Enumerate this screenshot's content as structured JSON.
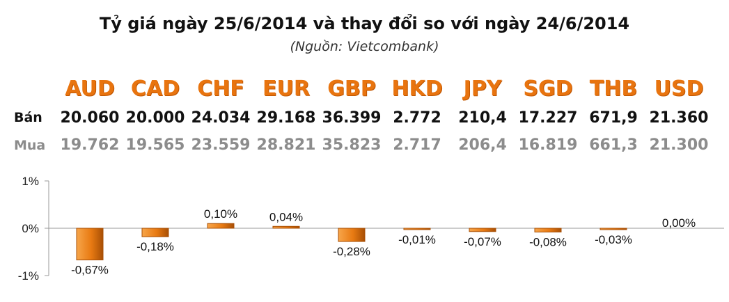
{
  "title": "Tỷ giá ngày 25/6/2014 và thay đổi so với ngày 24/6/2014",
  "source": "(Nguồn: Vietcombank)",
  "rows": {
    "sell_label": "Bán",
    "buy_label": "Mua"
  },
  "colors": {
    "bar": "#e87a12",
    "bar_dark": "#a84f05",
    "bar_light": "#f7a54a",
    "currency": "#e8740f"
  },
  "chart_data": {
    "type": "bar",
    "categories": [
      "AUD",
      "CAD",
      "CHF",
      "EUR",
      "GBP",
      "HKD",
      "JPY",
      "SGD",
      "THB",
      "USD"
    ],
    "sell": [
      "20.060",
      "20.000",
      "24.034",
      "29.168",
      "36.399",
      "2.772",
      "210,4",
      "17.227",
      "671,9",
      "21.360"
    ],
    "buy": [
      "19.762",
      "19.565",
      "23.559",
      "28.821",
      "35.823",
      "2.717",
      "206,4",
      "16.819",
      "661,3",
      "21.300"
    ],
    "values": [
      -0.67,
      -0.18,
      0.1,
      0.04,
      -0.28,
      -0.01,
      -0.07,
      -0.08,
      -0.03,
      0.0
    ],
    "value_labels": [
      "-0,67%",
      "-0,18%",
      "0,10%",
      "0,04%",
      "-0,28%",
      "-0,01%",
      "-0,07%",
      "-0,08%",
      "-0,03%",
      "0,00%"
    ],
    "ylim": [
      -1,
      1
    ],
    "yticks": [
      1,
      0,
      -1
    ],
    "ytick_labels": [
      "1%",
      "0%",
      "-1%"
    ],
    "xlabel": "",
    "ylabel": "",
    "grid": false
  }
}
